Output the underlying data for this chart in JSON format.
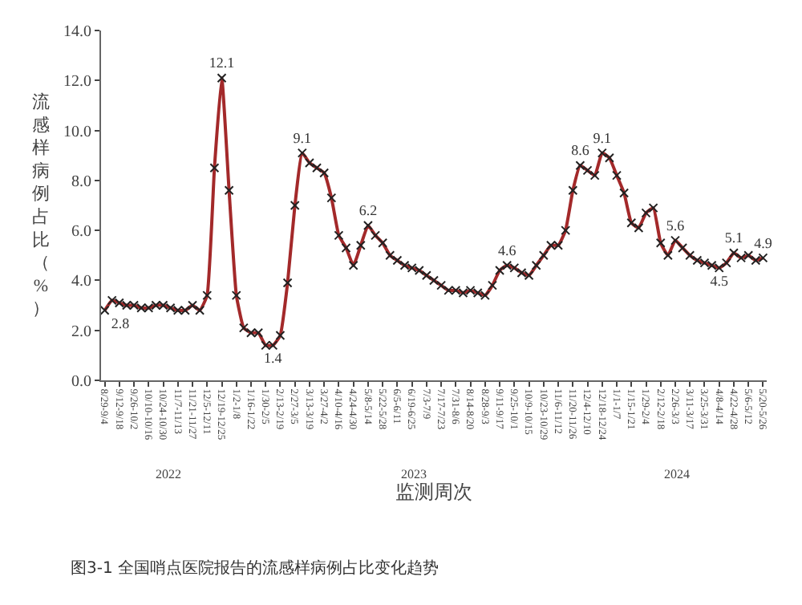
{
  "chart_data": {
    "type": "line",
    "ylabel": "流感样病例占比（%）",
    "xlabel": "监测周次",
    "categories": [
      "8/29-9/4",
      null,
      "9/12-9/18",
      null,
      "9/26-10/2",
      null,
      "10/10-10/16",
      null,
      "10/24-10/30",
      null,
      "11/7-11/13",
      null,
      "11/21-11/27",
      null,
      "12/5-12/11",
      null,
      "12/19-12/25",
      null,
      "1/2-1/8",
      null,
      "1/16-1/22",
      null,
      "1/30-2/5",
      null,
      "2/13-2/19",
      null,
      "2/27-3/5",
      null,
      "3/13-3/19",
      null,
      "3/27-4/2",
      null,
      "4/10-4/16",
      null,
      "4/24-4/30",
      null,
      "5/8-5/14",
      null,
      "5/22-5/28",
      null,
      "6/5-6/11",
      null,
      "6/19-6/25",
      null,
      "7/3-7/9",
      null,
      "7/17-7/23",
      null,
      "7/31-8/6",
      null,
      "8/14-8/20",
      null,
      "8/28-9/3",
      null,
      "9/11-9/17",
      null,
      "9/25-10/1",
      null,
      "10/9-10/15",
      null,
      "10/23-10/29",
      null,
      "11/6-11/12",
      null,
      "11/20-11/26",
      null,
      "12/4-12/10",
      null,
      "12/18-12/24",
      null,
      "1/1-1/7",
      null,
      "1/15-1/21",
      null,
      "1/29-2/4",
      null,
      "2/12-2/18",
      null,
      "2/26-3/3",
      null,
      "3/11-3/17",
      null,
      "3/25-3/31",
      null,
      "4/8-4/14",
      null,
      "4/22-4/28",
      null,
      "5/6-5/12",
      null,
      "5/20-5/26"
    ],
    "series": [
      {
        "color": "#a3292a",
        "values": [
          2.8,
          3.2,
          3.1,
          3.0,
          3.0,
          2.9,
          2.9,
          3.0,
          3.0,
          2.9,
          2.8,
          2.8,
          3.0,
          2.8,
          3.4,
          8.5,
          12.1,
          7.6,
          3.4,
          2.1,
          1.9,
          1.9,
          1.4,
          1.4,
          1.8,
          3.9,
          7.0,
          9.1,
          8.7,
          8.5,
          8.3,
          7.3,
          5.8,
          5.3,
          4.6,
          5.4,
          6.2,
          5.8,
          5.5,
          5.0,
          4.8,
          4.6,
          4.5,
          4.4,
          4.2,
          4.0,
          3.8,
          3.6,
          3.6,
          3.5,
          3.6,
          3.5,
          3.4,
          3.8,
          4.4,
          4.6,
          4.5,
          4.3,
          4.2,
          4.6,
          5.0,
          5.4,
          5.4,
          6.0,
          7.6,
          8.6,
          8.4,
          8.2,
          9.1,
          8.9,
          8.2,
          7.5,
          6.3,
          6.1,
          6.7,
          6.9,
          5.5,
          5.0,
          5.6,
          5.3,
          5.0,
          4.8,
          4.7,
          4.6,
          4.5,
          4.7,
          5.1,
          4.9,
          5.0,
          4.8,
          4.9
        ],
        "value_labels": [
          "2.8",
          null,
          null,
          null,
          null,
          null,
          null,
          null,
          null,
          null,
          null,
          null,
          null,
          null,
          null,
          null,
          "12.1",
          null,
          null,
          null,
          null,
          null,
          null,
          "1.4",
          null,
          null,
          null,
          "9.1",
          null,
          null,
          null,
          null,
          null,
          null,
          null,
          null,
          "6.2",
          null,
          null,
          null,
          null,
          null,
          null,
          null,
          null,
          null,
          null,
          null,
          null,
          null,
          null,
          null,
          null,
          null,
          null,
          "4.6",
          null,
          null,
          null,
          null,
          null,
          null,
          null,
          null,
          null,
          "8.6",
          null,
          null,
          "9.1",
          null,
          null,
          null,
          null,
          null,
          null,
          null,
          null,
          null,
          "5.6",
          null,
          null,
          null,
          null,
          null,
          "4.5",
          null,
          "5.1",
          null,
          null,
          null,
          "4.9"
        ]
      }
    ],
    "ylim": [
      0,
      14
    ],
    "yticks": [
      {
        "value": 0,
        "label": "0.0"
      },
      {
        "value": 2,
        "label": "2.0"
      },
      {
        "value": 4,
        "label": "4.0"
      },
      {
        "value": 6,
        "label": "6.0"
      },
      {
        "value": 8,
        "label": "8.0"
      },
      {
        "value": 10,
        "label": "10.0"
      },
      {
        "value": 12,
        "label": "12.0"
      },
      {
        "value": 14,
        "label": "14.0"
      }
    ],
    "marker": "cross",
    "line_style": "solid",
    "grid": false,
    "annotations": [
      "2022",
      "2023",
      "2024",
      "图3-1 全国哨点医院报告的流感样病例占比变化趋势"
    ]
  }
}
